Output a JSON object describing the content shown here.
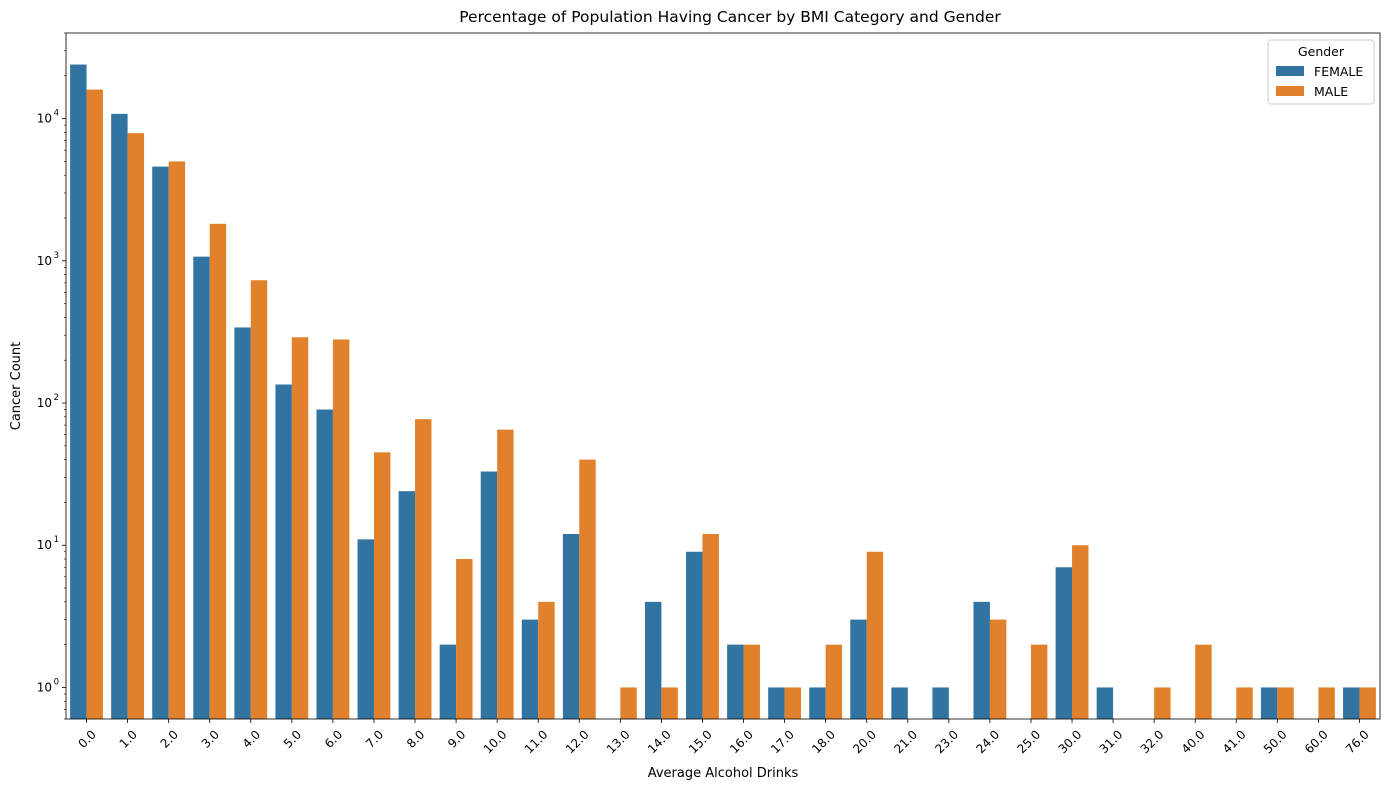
{
  "chart_data": {
    "type": "bar",
    "title": "Percentage of Population Having Cancer by BMI Category and Gender",
    "xlabel": "Average Alcohol Drinks",
    "ylabel": "Cancer Count",
    "yscale": "log",
    "ylim": [
      0.6,
      40000
    ],
    "y_ticks": [
      {
        "value": 1,
        "base": "10",
        "exp": "0"
      },
      {
        "value": 10,
        "base": "10",
        "exp": "1"
      },
      {
        "value": 100,
        "base": "10",
        "exp": "2"
      },
      {
        "value": 1000,
        "base": "10",
        "exp": "3"
      },
      {
        "value": 10000,
        "base": "10",
        "exp": "4"
      }
    ],
    "grid": false,
    "legend": {
      "title": "Gender",
      "position": "top-right"
    },
    "categories": [
      "0.0",
      "1.0",
      "2.0",
      "3.0",
      "4.0",
      "5.0",
      "6.0",
      "7.0",
      "8.0",
      "9.0",
      "10.0",
      "11.0",
      "12.0",
      "13.0",
      "14.0",
      "15.0",
      "16.0",
      "17.0",
      "18.0",
      "20.0",
      "21.0",
      "23.0",
      "24.0",
      "25.0",
      "30.0",
      "31.0",
      "32.0",
      "40.0",
      "41.0",
      "50.0",
      "60.0",
      "76.0"
    ],
    "series": [
      {
        "name": "FEMALE",
        "color": "#3274a1",
        "values": [
          24000,
          10800,
          4600,
          1070,
          340,
          135,
          90,
          11,
          24,
          2,
          33,
          3,
          12,
          null,
          4,
          9,
          2,
          1,
          1,
          3,
          1,
          1,
          4,
          null,
          7,
          1,
          null,
          null,
          null,
          1,
          null,
          1
        ]
      },
      {
        "name": "MALE",
        "color": "#e1812c",
        "values": [
          16000,
          7900,
          5000,
          1820,
          730,
          290,
          280,
          45,
          77,
          8,
          65,
          4,
          40,
          1,
          1,
          12,
          2,
          1,
          2,
          9,
          null,
          null,
          3,
          2,
          10,
          null,
          1,
          2,
          1,
          1,
          1,
          1
        ]
      }
    ]
  }
}
